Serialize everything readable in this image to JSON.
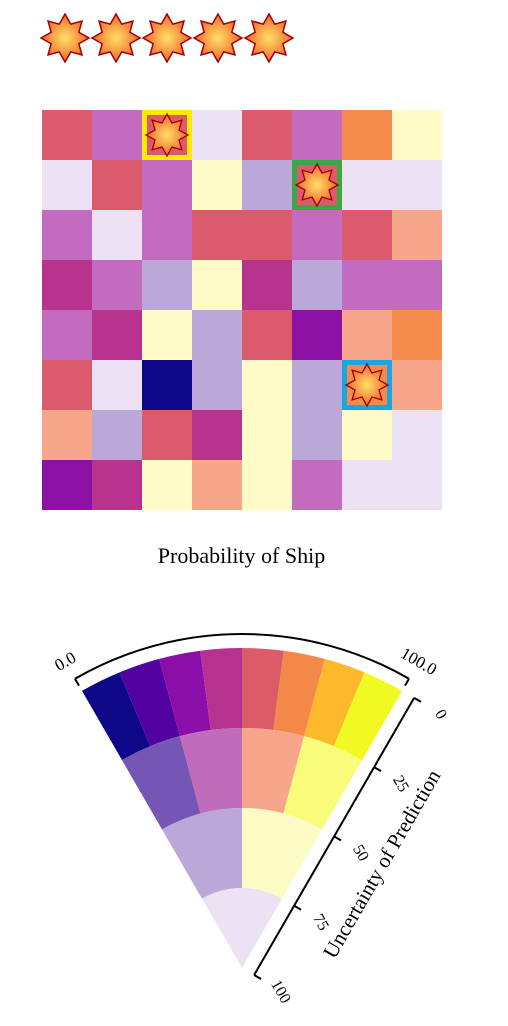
{
  "stars": {
    "count": 5,
    "icon": "starburst-icon",
    "colors": {
      "inner": "#ffe066",
      "outer": "#f05a28",
      "stroke": "#a00000"
    }
  },
  "grid": {
    "title": "Probability of Ship",
    "rows": [
      [
        "#db5a6b",
        "#c26bbf",
        "#db5a6b",
        "#ece2f4",
        "#db5a6b",
        "#c26bbf",
        "#f48b4a",
        "#fffbc8"
      ],
      [
        "#ece2f4",
        "#db5a6b",
        "#c26bbf",
        "#fffbc8",
        "#bba8d9",
        "#db5a6b",
        "#ece2f4",
        "#ece2f4"
      ],
      [
        "#c26bbf",
        "#ece2f4",
        "#c26bbf",
        "#db5a6b",
        "#db5a6b",
        "#c26bbf",
        "#db5a6b",
        "#f8a68a"
      ],
      [
        "#b8338e",
        "#c26bbf",
        "#bba8d9",
        "#fffbc8",
        "#b8338e",
        "#bba8d9",
        "#c26bbf",
        "#c26bbf"
      ],
      [
        "#c26bbf",
        "#b8338e",
        "#fffbc8",
        "#bba8d9",
        "#db5a6b",
        "#8c10a2",
        "#f8a68a",
        "#f48b4a"
      ],
      [
        "#db5a6b",
        "#ece2f4",
        "#0d0887",
        "#bba8d9",
        "#fffbc8",
        "#bba8d9",
        "#f48b4a",
        "#f8a68a"
      ],
      [
        "#f8a68a",
        "#bba8d9",
        "#db5a6b",
        "#b8338e",
        "#fffbc8",
        "#bba8d9",
        "#fffbc8",
        "#ece2f4"
      ],
      [
        "#8c10a2",
        "#b8338e",
        "#fffbc8",
        "#f8a68a",
        "#fffbc8",
        "#c26bbf",
        "#ece2f4",
        "#ece2f4"
      ]
    ],
    "hits": [
      {
        "row": 0,
        "col": 2,
        "border": "#ffea00",
        "icon": "starburst-icon"
      },
      {
        "row": 1,
        "col": 5,
        "border": "#3aa845",
        "icon": "starburst-icon"
      },
      {
        "row": 5,
        "col": 6,
        "border": "#1aa6e0",
        "icon": "starburst-icon"
      }
    ]
  },
  "legend": {
    "value_min": "0.0",
    "value_max": "100.0",
    "uncertainty_label": "Uncertainty of Prediction",
    "uncertainty_ticks": [
      "0",
      "25",
      "50",
      "75",
      "100"
    ],
    "rings": [
      [
        "#0d0887",
        "#5202a1",
        "#8b0ea8",
        "#b7328f",
        "#db5c68",
        "#f48849",
        "#feb82c",
        "#f0f921"
      ],
      [
        "#7556b4",
        "#c06cbb",
        "#f7a68c",
        "#f9fb7a"
      ],
      [
        "#bba8d9",
        "#fdfbc5"
      ],
      [
        "#ece2f4"
      ]
    ]
  }
}
